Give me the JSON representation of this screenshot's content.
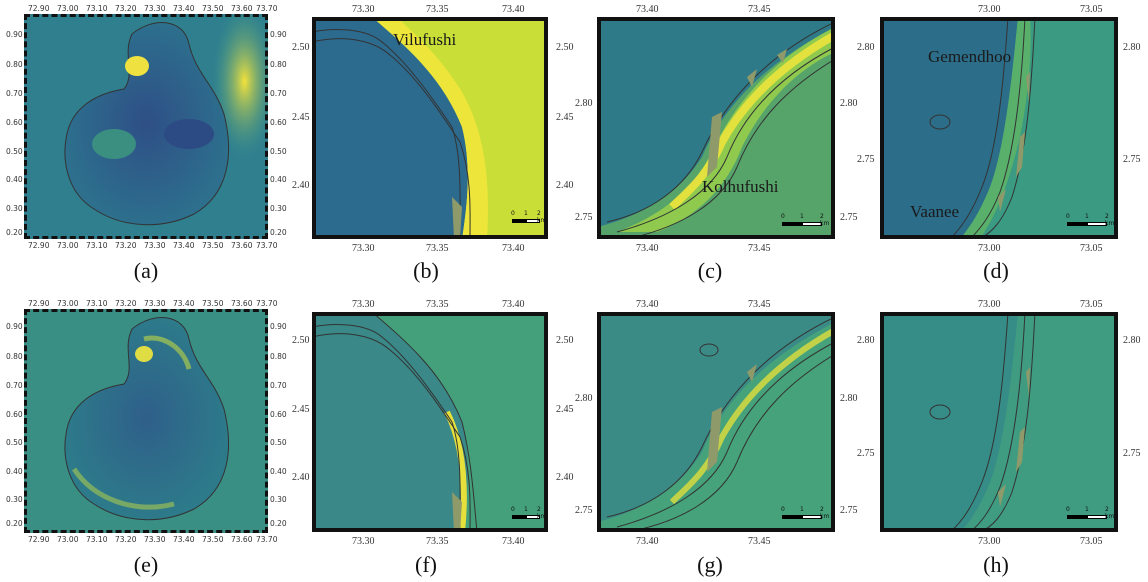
{
  "panels": {
    "a": {
      "caption": "(a)",
      "x_ticks": [
        "72.90",
        "73.00",
        "73.10",
        "73.20",
        "73.30",
        "73.40",
        "73.50",
        "73.60",
        "73.70"
      ],
      "y_ticks": [
        "0.90",
        "0.80",
        "0.70",
        "0.60",
        "0.50",
        "0.40",
        "0.30",
        "0.20"
      ]
    },
    "b": {
      "caption": "(b)",
      "x_ticks": [
        "73.30",
        "73.35",
        "73.40"
      ],
      "y_ticks": [
        "2.50",
        "2.45",
        "2.40"
      ],
      "place": "Vilufushi",
      "scale": [
        "0",
        "1",
        "2 km"
      ]
    },
    "c": {
      "caption": "(c)",
      "x_ticks": [
        "73.40",
        "73.45"
      ],
      "y_ticks": [
        "2.80",
        "2.75"
      ],
      "place": "Kolhufushi",
      "scale": [
        "0",
        "1",
        "2 km"
      ]
    },
    "d": {
      "caption": "(d)",
      "x_ticks": [
        "73.00",
        "73.05"
      ],
      "y_ticks": [
        "2.80",
        "2.75"
      ],
      "place": "Gemendhoo",
      "place2": "Vaanee",
      "scale": [
        "0",
        "1",
        "2 km"
      ]
    },
    "e": {
      "caption": "(e)",
      "x_ticks": [
        "72.90",
        "73.00",
        "73.10",
        "73.20",
        "73.30",
        "73.40",
        "73.50",
        "73.60",
        "73.70"
      ],
      "y_ticks": [
        "0.90",
        "0.80",
        "0.70",
        "0.60",
        "0.50",
        "0.40",
        "0.30",
        "0.20"
      ]
    },
    "f": {
      "caption": "(f)",
      "x_ticks": [
        "73.30",
        "73.35",
        "73.40"
      ],
      "y_ticks": [
        "2.50",
        "2.45",
        "2.40"
      ],
      "scale": [
        "0",
        "1",
        "2 km"
      ]
    },
    "g": {
      "caption": "(g)",
      "x_ticks": [
        "73.40",
        "73.45"
      ],
      "y_ticks": [
        "2.80",
        "2.75"
      ],
      "scale": [
        "0",
        "1",
        "2 km"
      ]
    },
    "h": {
      "caption": "(h)",
      "x_ticks": [
        "73.00",
        "73.05"
      ],
      "y_ticks": [
        "2.80",
        "2.75"
      ],
      "scale": [
        "0",
        "1",
        "2 km"
      ]
    }
  },
  "colors": {
    "deep": "#2b4f8a",
    "mid": "#2f8a8c",
    "high": "#7cc06a",
    "peak": "#f2e53a",
    "island": "#8f9a6a"
  }
}
